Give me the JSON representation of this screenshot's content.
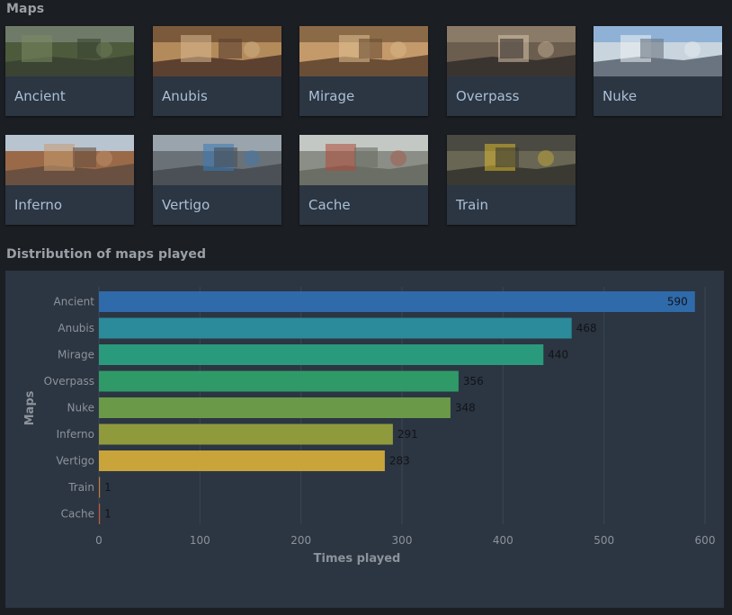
{
  "maps_section": {
    "title": "Maps",
    "cards": [
      {
        "name": "Ancient",
        "thumb": {
          "sky": "#6f7a68",
          "mid": "#4d5a3c",
          "ground": "#3b4432",
          "accent": "#7b8a63"
        }
      },
      {
        "name": "Anubis",
        "thumb": {
          "sky": "#7b5a3c",
          "mid": "#b38a5a",
          "ground": "#5c4030",
          "accent": "#d9b890"
        }
      },
      {
        "name": "Mirage",
        "thumb": {
          "sky": "#8b6a48",
          "mid": "#c49a6a",
          "ground": "#6a4e36",
          "accent": "#e0c090"
        }
      },
      {
        "name": "Overpass",
        "thumb": {
          "sky": "#8a7a68",
          "mid": "#6b5e4e",
          "ground": "#3a3430",
          "accent": "#d6c2a8"
        }
      },
      {
        "name": "Nuke",
        "thumb": {
          "sky": "#8fb1d6",
          "mid": "#c8d4de",
          "ground": "#6a7480",
          "accent": "#eef2f5"
        }
      },
      {
        "name": "Inferno",
        "thumb": {
          "sky": "#b8c4d0",
          "mid": "#9a6a48",
          "ground": "#6a5040",
          "accent": "#c89a70"
        }
      },
      {
        "name": "Vertigo",
        "thumb": {
          "sky": "#9aa4ac",
          "mid": "#6a7278",
          "ground": "#4a5056",
          "accent": "#3a7ab8"
        }
      },
      {
        "name": "Cache",
        "thumb": {
          "sky": "#c4c8c4",
          "mid": "#8a8e86",
          "ground": "#6a6e64",
          "accent": "#b04a3a"
        }
      },
      {
        "name": "Train",
        "thumb": {
          "sky": "#4a4a42",
          "mid": "#6a6654",
          "ground": "#3a3a32",
          "accent": "#d8b830"
        }
      }
    ]
  },
  "distribution_section": {
    "title": "Distribution of maps played"
  },
  "chart_data": {
    "type": "bar",
    "orientation": "horizontal",
    "categories": [
      "Ancient",
      "Anubis",
      "Mirage",
      "Overpass",
      "Nuke",
      "Inferno",
      "Vertigo",
      "Train",
      "Cache"
    ],
    "values": [
      590,
      468,
      440,
      356,
      348,
      291,
      283,
      1,
      1
    ],
    "colors": [
      "#2f6aab",
      "#2b8b9b",
      "#2a9a7c",
      "#2f9a68",
      "#6a9a48",
      "#8f9a3c",
      "#c9a43a",
      "#c87a3a",
      "#c25a3a"
    ],
    "xlabel": "Times played",
    "ylabel": "Maps",
    "xlim": [
      0,
      600
    ],
    "xticks": [
      0,
      100,
      200,
      300,
      400,
      500,
      600
    ],
    "grid": true,
    "legend": false,
    "label_inside_top_bar": true
  }
}
